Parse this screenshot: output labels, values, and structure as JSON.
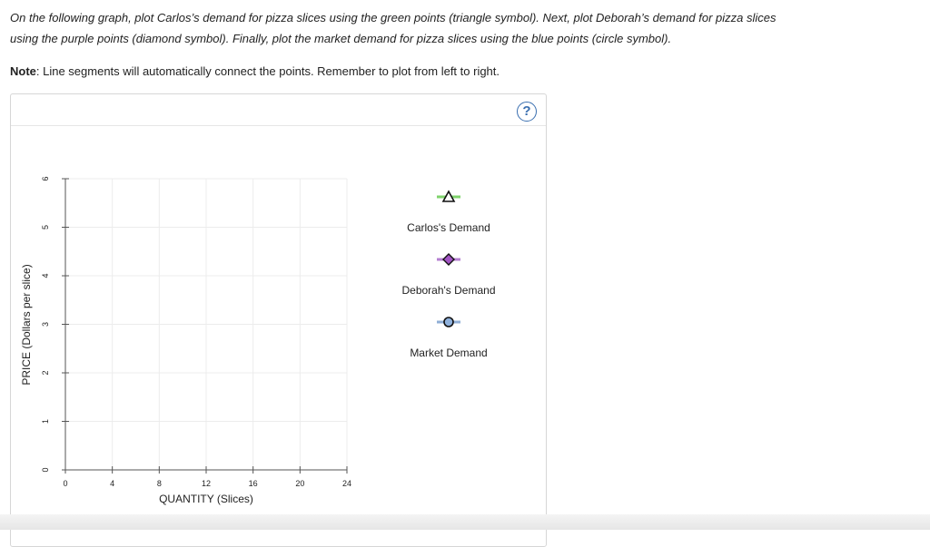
{
  "instructions": {
    "line1": "On the following graph, plot Carlos’s demand for pizza slices using the green points (triangle symbol). Next, plot Deborah’s demand for pizza slices",
    "line2": "using the purple points (diamond symbol). Finally, plot the market demand for pizza slices using the blue points (circle symbol).",
    "note_label": "Note",
    "note_text": ": Line segments will automatically connect the points. Remember to plot from left to right."
  },
  "help_icon": "?",
  "chart_data": {
    "type": "line",
    "xlabel": "QUANTITY (Slices)",
    "ylabel": "PRICE (Dollars per slice)",
    "xlim": [
      0,
      24
    ],
    "ylim": [
      0,
      6
    ],
    "xticks": [
      "0",
      "4",
      "8",
      "12",
      "16",
      "20",
      "24"
    ],
    "yticks": [
      "0",
      "1",
      "2",
      "3",
      "4",
      "5",
      "6"
    ],
    "grid": true,
    "series": []
  },
  "legend_tools": [
    {
      "label": "Carlos's Demand",
      "symbol": "triangle",
      "color": "#7fd36c",
      "fill": "#ffffff"
    },
    {
      "label": "Deborah's Demand",
      "symbol": "diamond",
      "color": "#b57fd1",
      "fill": "#a254c4"
    },
    {
      "label": "Market Demand",
      "symbol": "circle",
      "color": "#8faed6",
      "fill": "#8fb1dc"
    }
  ]
}
